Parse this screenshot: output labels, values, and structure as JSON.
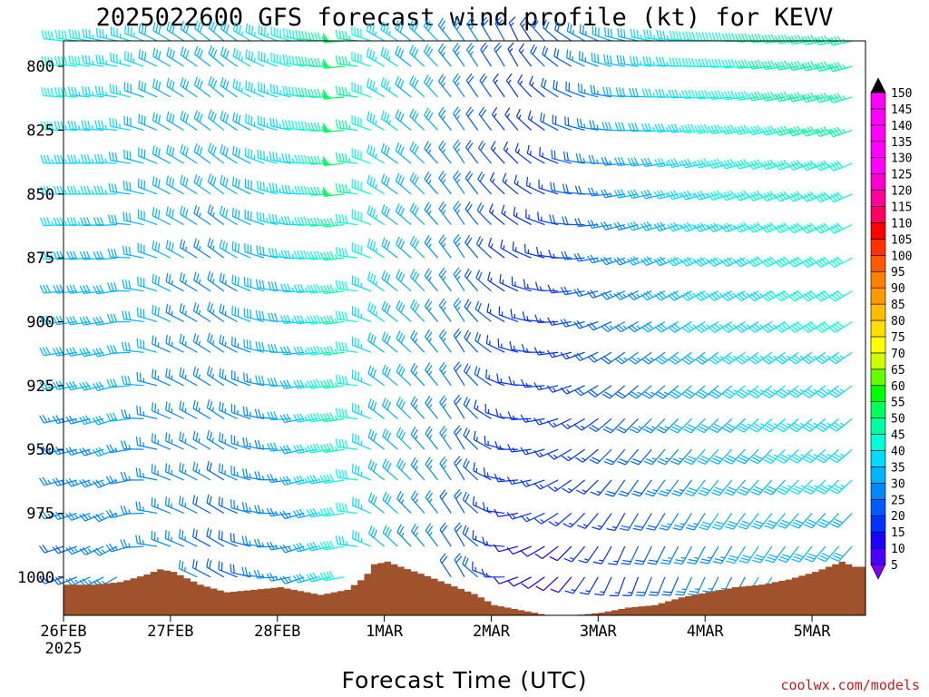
{
  "title": "2025022600 GFS forecast wind profile (kt) for KEVV",
  "xlabel": "Forecast Time (UTC)",
  "credit": "coolwx.com/models",
  "colors": {
    "terrain": "#a0522d",
    "scale": [
      "#7a00ff",
      "#4a00ff",
      "#1a00ff",
      "#0033ff",
      "#005cff",
      "#0088ff",
      "#00b4ff",
      "#00dcff",
      "#00ffd9",
      "#00ffa0",
      "#00ff5a",
      "#00ff00",
      "#66ff00",
      "#ccff00",
      "#ffff00",
      "#ffdd00",
      "#ffbb00",
      "#ff9900",
      "#ff8000",
      "#ff5a00",
      "#ff3300",
      "#ff0000",
      "#ff0060",
      "#ff0099",
      "#ff00cc",
      "#ff00ff",
      "#ff00ff",
      "#ff00ff",
      "#ff00ff",
      "#ff00ff"
    ]
  },
  "chart_data": {
    "type": "wind-barb time-height",
    "title": "2025022600 GFS forecast wind profile (kt) for KEVV",
    "xlabel": "Forecast Time (UTC)",
    "y_axis": {
      "ticks": [
        800,
        825,
        850,
        875,
        900,
        925,
        950,
        975,
        1000
      ],
      "range": [
        790,
        1015
      ],
      "inverted": true
    },
    "x_axis": {
      "ticks": [
        {
          "label": "26FEB",
          "hour": 0
        },
        {
          "label": "27FEB",
          "hour": 24
        },
        {
          "label": "28FEB",
          "hour": 48
        },
        {
          "label": "1MAR",
          "hour": 72
        },
        {
          "label": "2MAR",
          "hour": 96
        },
        {
          "label": "3MAR",
          "hour": 120
        },
        {
          "label": "4MAR",
          "hour": 144
        },
        {
          "label": "5MAR",
          "hour": 168
        }
      ],
      "sublabel": "2025",
      "range": [
        0,
        180
      ]
    },
    "colorbar": {
      "units": "kt",
      "ticks": [
        5,
        10,
        15,
        20,
        25,
        30,
        35,
        40,
        45,
        50,
        55,
        60,
        65,
        70,
        75,
        80,
        85,
        90,
        95,
        100,
        105,
        110,
        115,
        120,
        125,
        130,
        135,
        140,
        145,
        150
      ],
      "labels": [
        "5",
        "10",
        "15",
        "20",
        "25",
        "30",
        "35",
        "40",
        "45",
        "50",
        "55",
        "60",
        "65",
        "70",
        "75",
        "80",
        "85",
        "90",
        "95",
        "100",
        "105",
        "110",
        "115",
        "120",
        "125",
        "130",
        "135",
        "140",
        "145",
        "150"
      ]
    },
    "barb_levels": [
      790,
      800,
      812,
      825,
      838,
      850,
      862,
      875,
      888,
      900,
      912,
      925,
      938,
      950,
      962,
      975,
      988,
      1000
    ],
    "barb_hours": [
      0,
      3,
      6,
      9,
      12,
      15,
      18,
      21,
      24,
      27,
      30,
      33,
      36,
      39,
      42,
      45,
      48,
      51,
      54,
      57,
      60,
      63,
      66,
      69,
      72,
      75,
      78,
      81,
      84,
      87,
      90,
      93,
      96,
      99,
      102,
      105,
      108,
      111,
      114,
      117,
      120,
      123,
      126,
      129,
      132,
      135,
      138,
      141,
      144,
      147,
      150,
      153,
      156,
      159,
      162,
      165,
      168,
      171,
      174,
      177
    ],
    "wind_keyframes": [
      {
        "hour": 0,
        "upper_dir": 275,
        "upper_spd": 40,
        "lower_dir": 250,
        "lower_spd": 20
      },
      {
        "hour": 12,
        "upper_dir": 280,
        "upper_spd": 35,
        "lower_dir": 240,
        "lower_spd": 25
      },
      {
        "hour": 24,
        "upper_dir": 300,
        "upper_spd": 30,
        "lower_dir": 290,
        "lower_spd": 25
      },
      {
        "hour": 36,
        "upper_dir": 310,
        "upper_spd": 30,
        "lower_dir": 300,
        "lower_spd": 20
      },
      {
        "hour": 54,
        "upper_dir": 280,
        "upper_spd": 40,
        "lower_dir": 250,
        "lower_spd": 25
      },
      {
        "hour": 63,
        "upper_dir": 265,
        "upper_spd": 50,
        "lower_dir": 260,
        "lower_spd": 40
      },
      {
        "hour": 72,
        "upper_dir": 300,
        "upper_spd": 35,
        "lower_dir": 310,
        "lower_spd": 30
      },
      {
        "hour": 90,
        "upper_dir": 325,
        "upper_spd": 25,
        "lower_dir": 330,
        "lower_spd": 20
      },
      {
        "hour": 102,
        "upper_dir": 330,
        "upper_spd": 15,
        "lower_dir": 250,
        "lower_spd": 12
      },
      {
        "hour": 114,
        "upper_dir": 300,
        "upper_spd": 20,
        "lower_dir": 220,
        "lower_spd": 12
      },
      {
        "hour": 126,
        "upper_dir": 280,
        "upper_spd": 30,
        "lower_dir": 200,
        "lower_spd": 15
      },
      {
        "hour": 144,
        "upper_dir": 270,
        "upper_spd": 40,
        "lower_dir": 205,
        "lower_spd": 25
      },
      {
        "hour": 165,
        "upper_dir": 260,
        "upper_spd": 45,
        "lower_dir": 215,
        "lower_spd": 30
      },
      {
        "hour": 177,
        "upper_dir": 255,
        "upper_spd": 45,
        "lower_dir": 220,
        "lower_spd": 30
      }
    ],
    "surface_pressure": [
      [
        0,
        1003
      ],
      [
        6,
        1003
      ],
      [
        12,
        1002
      ],
      [
        18,
        999
      ],
      [
        21,
        997
      ],
      [
        24,
        998
      ],
      [
        30,
        1003
      ],
      [
        36,
        1006
      ],
      [
        42,
        1005
      ],
      [
        48,
        1004
      ],
      [
        54,
        1006
      ],
      [
        57,
        1007
      ],
      [
        63,
        1005
      ],
      [
        67,
        1000
      ],
      [
        69,
        995
      ],
      [
        72,
        994
      ],
      [
        75,
        996
      ],
      [
        80,
        999
      ],
      [
        86,
        1003
      ],
      [
        92,
        1007
      ],
      [
        96,
        1011
      ],
      [
        102,
        1013
      ],
      [
        108,
        1015
      ],
      [
        111,
        1016
      ],
      [
        114,
        1015
      ],
      [
        120,
        1014
      ],
      [
        126,
        1012
      ],
      [
        132,
        1011
      ],
      [
        138,
        1008
      ],
      [
        144,
        1006
      ],
      [
        150,
        1004
      ],
      [
        156,
        1003
      ],
      [
        162,
        1001
      ],
      [
        168,
        998
      ],
      [
        171,
        996
      ],
      [
        174,
        994
      ],
      [
        177,
        996
      ],
      [
        180,
        996
      ]
    ]
  }
}
